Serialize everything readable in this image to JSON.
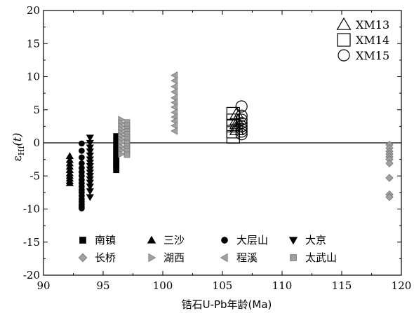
{
  "chart_data": {
    "type": "scatter",
    "title": "",
    "xlabel": "锆石U-Pb年龄(Ma)",
    "ylabel_main": "ε",
    "ylabel_sub": "Hf",
    "ylabel_tail": "(t)",
    "xlim": [
      90,
      120
    ],
    "ylim": [
      -20,
      20
    ],
    "xticks": [
      90,
      95,
      100,
      105,
      110,
      115,
      120
    ],
    "yticks": [
      -20,
      -15,
      -10,
      -5,
      0,
      5,
      10,
      15,
      20
    ],
    "zero_line": true,
    "grid": false,
    "legend_position": "bottom",
    "sample_legend_position": "top-right",
    "colors": {
      "black": "#000000",
      "gray": "#a0a0a0",
      "gray_edge": "#6e6e6e"
    },
    "series": [
      {
        "name": "南镇",
        "marker": "square",
        "fill": "#000000",
        "x": [
          96.1,
          96.1,
          96.1,
          96.1,
          96.1,
          96.1,
          96.1,
          96.1,
          96.1,
          96.1,
          96.1,
          96.1,
          96.1,
          96.1
        ],
        "y": [
          1.0,
          0.4,
          -0.1,
          -0.6,
          -1.0,
          -1.4,
          -1.8,
          -2.2,
          -2.5,
          -2.8,
          -3.2,
          -3.5,
          -3.8,
          -4.1
        ]
      },
      {
        "name": "三沙",
        "marker": "triangle-up",
        "fill": "#000000",
        "x": [
          92.2,
          92.2,
          92.2,
          92.2,
          92.2,
          92.2,
          92.2,
          92.2,
          92.2,
          92.2
        ],
        "y": [
          -2.0,
          -2.6,
          -3.1,
          -3.6,
          -4.1,
          -4.6,
          -5.0,
          -5.4,
          -5.8,
          -6.1
        ]
      },
      {
        "name": "大层山",
        "marker": "circle",
        "fill": "#000000",
        "x": [
          93.2,
          93.2,
          93.2,
          93.2,
          93.2,
          93.2,
          93.2,
          93.2,
          93.2,
          93.2,
          93.2,
          93.2,
          93.2,
          93.2,
          93.2,
          93.2,
          93.2,
          93.2
        ],
        "y": [
          -0.1,
          -1.2,
          -2.2,
          -3.1,
          -3.8,
          -4.4,
          -5.0,
          -5.6,
          -6.1,
          -6.6,
          -7.1,
          -7.5,
          -8.0,
          -8.5,
          -8.9,
          -9.3,
          -9.6,
          -9.9
        ]
      },
      {
        "name": "大京",
        "marker": "triangle-down",
        "fill": "#000000",
        "x": [
          93.9,
          93.9,
          93.9,
          93.9,
          93.9,
          93.9,
          93.9,
          93.9,
          93.9,
          93.9,
          93.9,
          93.9,
          93.9,
          93.9,
          93.9,
          93.9
        ],
        "y": [
          0.8,
          0.0,
          -0.7,
          -1.3,
          -1.9,
          -2.5,
          -3.0,
          -3.5,
          -4.0,
          -4.5,
          -5.0,
          -5.5,
          -6.0,
          -6.6,
          -7.3,
          -8.2
        ]
      },
      {
        "name": "长桥",
        "marker": "diamond",
        "fill": "#a0a0a0",
        "x": [
          119.0,
          119.0,
          119.0,
          119.0,
          119.0,
          119.0,
          119.0,
          119.0,
          119.0,
          119.0
        ],
        "y": [
          -0.3,
          -0.8,
          -1.3,
          -1.7,
          -2.1,
          -2.5,
          -3.1,
          -5.3,
          -7.8,
          -8.2
        ]
      },
      {
        "name": "湖西",
        "marker": "triangle-right",
        "fill": "#a0a0a0",
        "x": [
          96.5,
          96.5,
          96.5,
          96.5,
          96.5,
          96.5,
          96.5,
          96.5,
          96.5,
          96.5,
          96.5
        ],
        "y": [
          3.5,
          3.0,
          2.5,
          2.0,
          1.5,
          1.0,
          0.5,
          0.0,
          -0.6,
          -1.1,
          -1.7
        ]
      },
      {
        "name": "程溪",
        "marker": "triangle-left",
        "fill": "#a0a0a0",
        "x": [
          101.0,
          101.0,
          101.0,
          101.0,
          101.0,
          101.0,
          101.0,
          101.0,
          101.0,
          101.0,
          101.0,
          101.0
        ],
        "y": [
          10.2,
          9.4,
          8.5,
          7.7,
          6.8,
          6.1,
          5.4,
          4.6,
          3.9,
          3.3,
          2.6,
          1.8
        ]
      },
      {
        "name": "太武山",
        "marker": "square",
        "fill": "#a0a0a0",
        "x": [
          97.0,
          97.0,
          97.0,
          97.0,
          97.0,
          97.0,
          97.0,
          97.0,
          97.0,
          97.0,
          97.0,
          97.0
        ],
        "y": [
          3.1,
          2.6,
          2.1,
          1.7,
          1.3,
          0.9,
          0.5,
          0.0,
          -0.5,
          -0.9,
          -1.3,
          -1.8
        ]
      }
    ],
    "samples": [
      {
        "name": "XM13",
        "marker": "open-triangle",
        "x": [
          106.2,
          106.2,
          106.2,
          106.2,
          106.2
        ],
        "y": [
          4.4,
          3.5,
          2.9,
          2.4,
          2.0
        ]
      },
      {
        "name": "XM14",
        "marker": "open-square",
        "x": [
          105.9,
          105.9,
          105.9,
          105.9,
          105.9
        ],
        "y": [
          4.4,
          3.4,
          2.6,
          1.7,
          0.9
        ]
      },
      {
        "name": "XM15",
        "marker": "open-circle",
        "x": [
          106.6,
          106.6,
          106.6,
          106.6,
          106.6,
          106.6,
          106.6,
          106.6
        ],
        "y": [
          5.5,
          4.1,
          3.5,
          3.0,
          2.5,
          2.1,
          1.7,
          1.3
        ]
      }
    ]
  }
}
